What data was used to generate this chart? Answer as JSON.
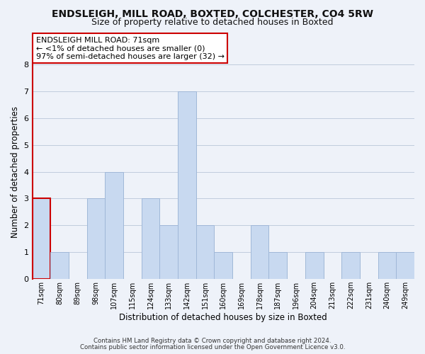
{
  "title": "ENDSLEIGH, MILL ROAD, BOXTED, COLCHESTER, CO4 5RW",
  "subtitle": "Size of property relative to detached houses in Boxted",
  "xlabel": "Distribution of detached houses by size in Boxted",
  "ylabel": "Number of detached properties",
  "categories": [
    "71sqm",
    "80sqm",
    "89sqm",
    "98sqm",
    "107sqm",
    "115sqm",
    "124sqm",
    "133sqm",
    "142sqm",
    "151sqm",
    "160sqm",
    "169sqm",
    "178sqm",
    "187sqm",
    "196sqm",
    "204sqm",
    "213sqm",
    "222sqm",
    "231sqm",
    "240sqm",
    "249sqm"
  ],
  "values": [
    3,
    1,
    0,
    3,
    4,
    0,
    3,
    2,
    7,
    2,
    1,
    0,
    2,
    1,
    0,
    1,
    0,
    1,
    0,
    1,
    1
  ],
  "highlight_index": 0,
  "bar_color_normal": "#c8d9f0",
  "bar_edge_color": "#a0b8d8",
  "highlight_bar_edge_color": "#cc0000",
  "ylim": [
    0,
    8
  ],
  "yticks": [
    0,
    1,
    2,
    3,
    4,
    5,
    6,
    7,
    8
  ],
  "annotation_title": "ENDSLEIGH MILL ROAD: 71sqm",
  "annotation_line1": "← <1% of detached houses are smaller (0)",
  "annotation_line2": "97% of semi-detached houses are larger (32) →",
  "footer_line1": "Contains HM Land Registry data © Crown copyright and database right 2024.",
  "footer_line2": "Contains public sector information licensed under the Open Government Licence v3.0.",
  "background_color": "#eef2f9",
  "plot_background_color": "#eef2f9",
  "grid_color": "#c0ccdd",
  "title_fontsize": 10,
  "subtitle_fontsize": 9,
  "annotation_box_edge_color": "#cc0000",
  "annotation_box_face_color": "#ffffff",
  "red_border_color": "#cc0000"
}
